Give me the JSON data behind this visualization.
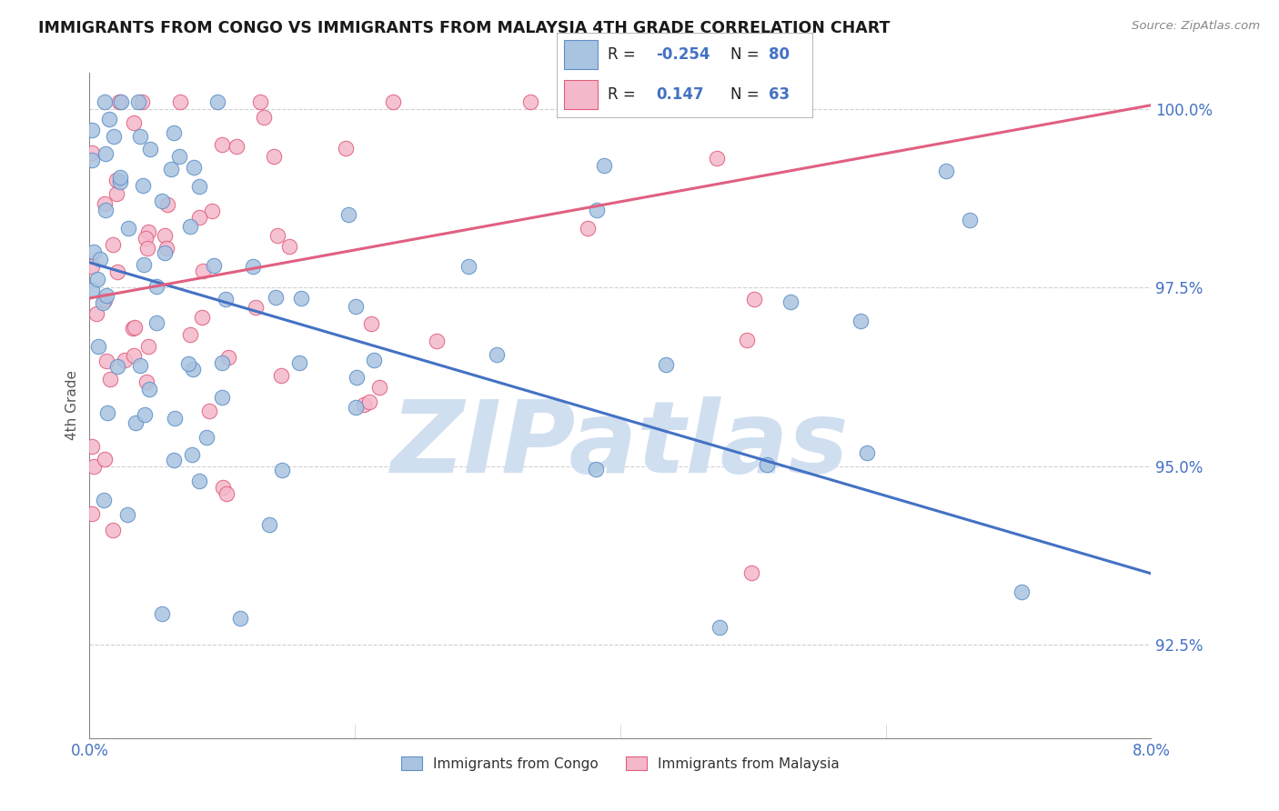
{
  "title": "IMMIGRANTS FROM CONGO VS IMMIGRANTS FROM MALAYSIA 4TH GRADE CORRELATION CHART",
  "source": "Source: ZipAtlas.com",
  "ylabel_label": "4th Grade",
  "xlim": [
    0.0,
    0.08
  ],
  "ylim": [
    0.912,
    1.005
  ],
  "x_ticks": [
    0.0,
    0.08
  ],
  "x_tick_labels": [
    "0.0%",
    "8.0%"
  ],
  "y_ticks": [
    0.925,
    0.95,
    0.975,
    1.0
  ],
  "y_tick_labels": [
    "92.5%",
    "95.0%",
    "97.5%",
    "100.0%"
  ],
  "congo_R": -0.254,
  "congo_N": 80,
  "malaysia_R": 0.147,
  "malaysia_N": 63,
  "congo_color": "#a8c4e0",
  "malaysia_color": "#f4b8cb",
  "congo_edge_color": "#6090c8",
  "malaysia_edge_color": "#e0607a",
  "congo_line_color": "#4472c4",
  "malaysia_line_color": "#e06080",
  "background_color": "#ffffff",
  "grid_color": "#d0d0d0",
  "watermark_color": "#d0dff0",
  "tick_color": "#4472c4",
  "title_color": "#1a1a1a",
  "ylabel_color": "#555555",
  "source_color": "#888888"
}
